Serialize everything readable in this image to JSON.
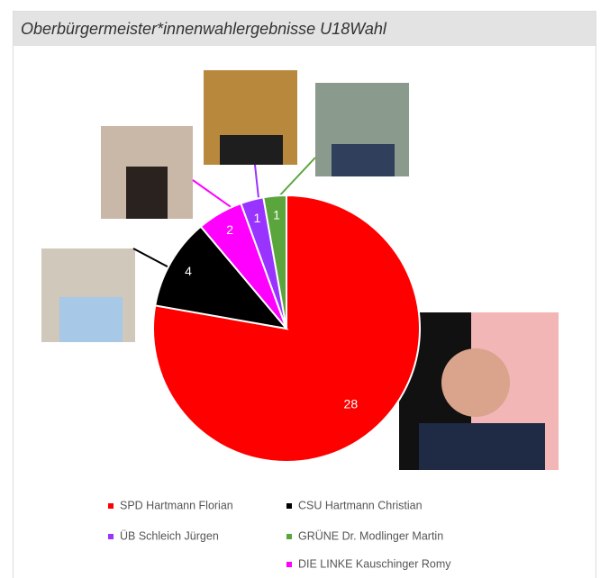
{
  "chart_data": {
    "type": "pie",
    "title": "Oberbürgermeister*innenwahlergebnisse U18Wahl",
    "categories": [
      "SPD Hartmann Florian",
      "CSU Hartmann Christian",
      "DIE LINKE Kauschinger Romy",
      "ÜB Schleich  Jürgen",
      "GRÜNE Dr. Modlinger Martin"
    ],
    "values": [
      28,
      4,
      2,
      1,
      1
    ],
    "colors": [
      "#ff0000",
      "#000000",
      "#ff00ff",
      "#9933ff",
      "#5aa53c"
    ]
  }
}
